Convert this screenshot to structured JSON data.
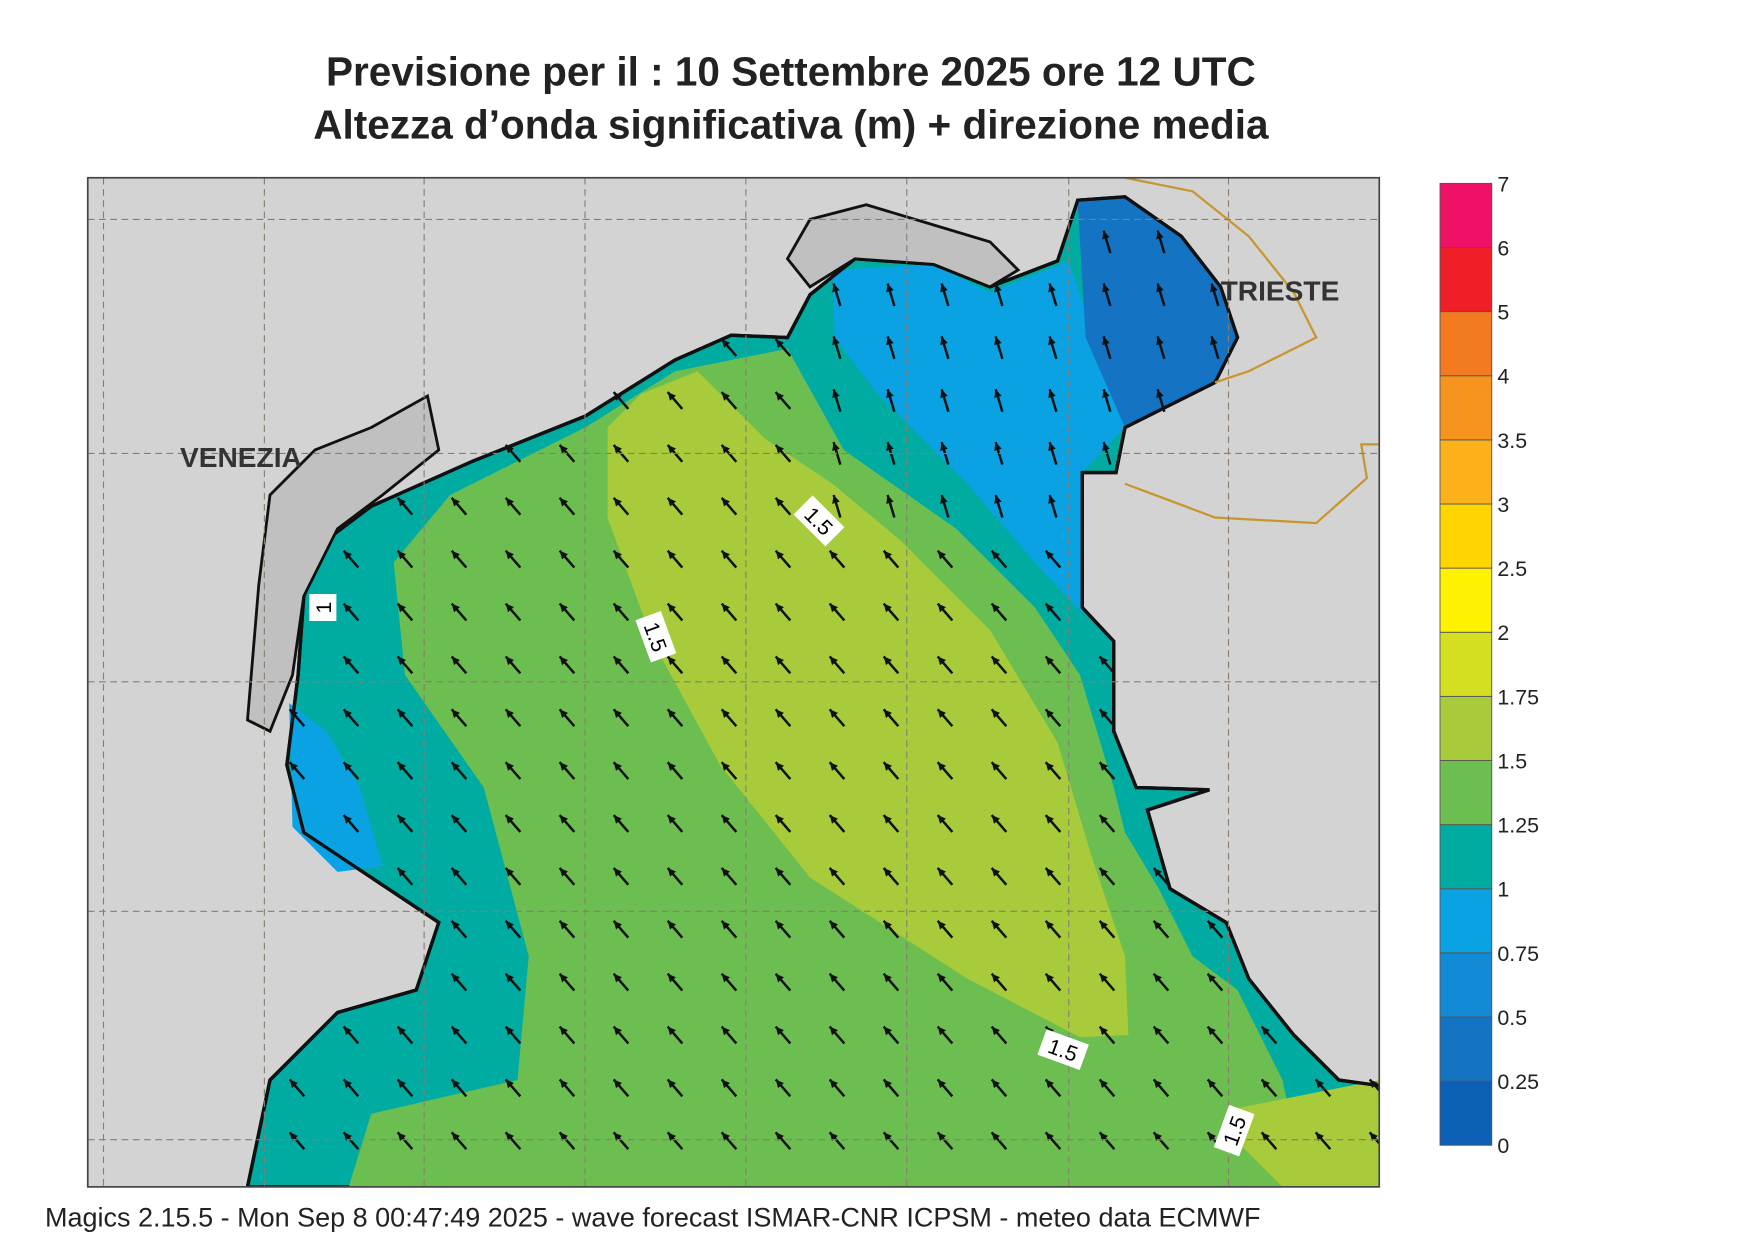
{
  "header": {
    "title_line1": "Previsione per il  :  10 Settembre 2025   ore 12 UTC",
    "title_line2": "Altezza d’onda significativa (m) + direzione media"
  },
  "map": {
    "city_labels": [
      "VENEZIA",
      "TRIESTE"
    ],
    "contour_labels": [
      "1.5",
      "1.5",
      "1",
      "1.5",
      "1.5"
    ]
  },
  "colorbar": {
    "levels": [
      0,
      0.25,
      0.5,
      0.75,
      1,
      1.25,
      1.5,
      1.75,
      2,
      2.5,
      3,
      3.5,
      4,
      5,
      6,
      7
    ],
    "colors": [
      "#0b5fb5",
      "#1573c4",
      "#138ad6",
      "#0aa2e2",
      "#00aba2",
      "#6dbe50",
      "#a7cb3a",
      "#d5df22",
      "#fff200",
      "#ffd500",
      "#fbb11a",
      "#f7941d",
      "#f47a22",
      "#ee1f26",
      "#ee1166"
    ]
  },
  "footer": "Magics 2.15.5 - Mon Sep  8 00:47:49 2025 - wave forecast  ISMAR-CNR  ICPSM - meteo data    ECMWF"
}
